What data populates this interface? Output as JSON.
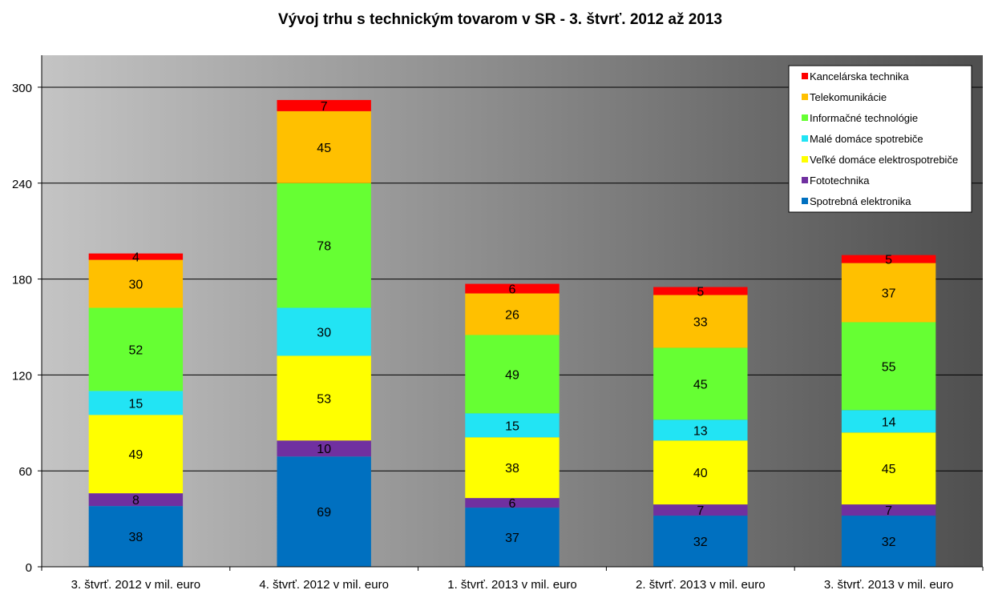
{
  "chart_data": {
    "type": "bar",
    "stacked": true,
    "title": "Vývoj trhu s technickým tovarom v SR - 3. štvrť. 2012 až 2013",
    "xlabel": "",
    "ylabel": "",
    "ylim": [
      0,
      320
    ],
    "yticks": [
      0,
      60,
      120,
      180,
      240,
      300
    ],
    "grid": true,
    "legend_position": "top-right",
    "categories": [
      "3. štvrť. 2012  v mil. euro",
      "4. štvrť. 2012  v mil. euro",
      "1. štvrť. 2013  v mil. euro",
      "2. štvrť. 2013  v mil. euro",
      "3. štvrť. 2013  v mil. euro"
    ],
    "series": [
      {
        "name": "Spotrebná elektronika",
        "color": "#0070C0",
        "values": [
          38,
          69,
          37,
          32,
          32
        ]
      },
      {
        "name": "Fototechnika",
        "color": "#7030A0",
        "values": [
          8,
          10,
          6,
          7,
          7
        ]
      },
      {
        "name": "Veľké domáce elektrospotrebiče",
        "color": "#FFFF00",
        "values": [
          49,
          53,
          38,
          40,
          45
        ]
      },
      {
        "name": "Malé domáce spotrebiče",
        "color": "#22E4F4",
        "values": [
          15,
          30,
          15,
          13,
          14
        ]
      },
      {
        "name": "Informačné technológie",
        "color": "#66FF33",
        "values": [
          52,
          78,
          49,
          45,
          55
        ]
      },
      {
        "name": "Telekomunikácie",
        "color": "#FFC000",
        "values": [
          30,
          45,
          26,
          33,
          37
        ]
      },
      {
        "name": "Kancelárska technika",
        "color": "#FF0000",
        "values": [
          4,
          7,
          6,
          5,
          5
        ]
      }
    ]
  }
}
